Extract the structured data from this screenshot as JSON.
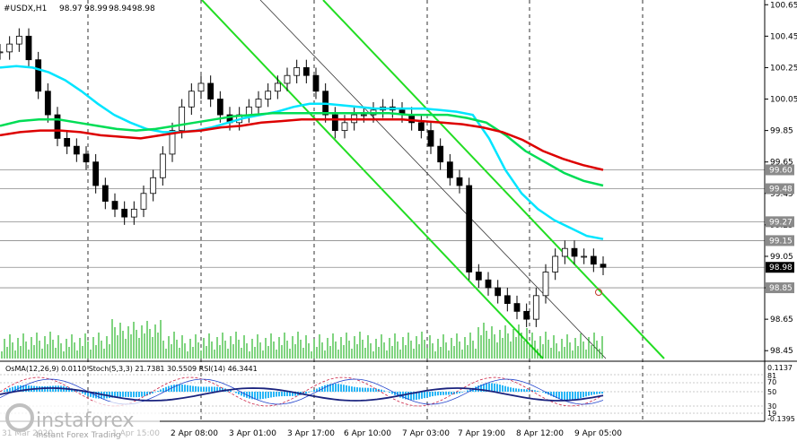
{
  "chart_data": {
    "type": "candlestick",
    "symbol_header": "#USDX,H1",
    "ohlc": [
      "98.97",
      "98.99",
      "98.94",
      "98.98"
    ],
    "price_axis": {
      "ylim": [
        98.4,
        100.68
      ],
      "ticks": [
        "100.65",
        "100.45",
        "100.25",
        "100.05",
        "99.85",
        "99.65",
        "99.45",
        "99.25",
        "99.05",
        "98.85",
        "98.65",
        "98.45"
      ],
      "tagged_levels": [
        "99.60",
        "99.48",
        "99.27",
        "99.15",
        "98.98",
        "98.85"
      ]
    },
    "time_axis": {
      "labels": [
        "31 Mar 2020",
        "1 Apr 15:00",
        "2 Apr 08:00",
        "3 Apr 01:00",
        "3 Apr 17:00",
        "6 Apr 10:00",
        "7 Apr 03:00",
        "7 Apr 19:00",
        "8 Apr 12:00",
        "9 Apr 05:00"
      ]
    },
    "horizontal_levels": [
      99.6,
      99.48,
      99.27,
      99.15,
      98.98,
      98.85
    ],
    "close_series": [
      100.35,
      100.4,
      100.45,
      100.3,
      100.1,
      99.95,
      99.8,
      99.75,
      99.7,
      99.65,
      99.5,
      99.4,
      99.35,
      99.3,
      99.35,
      99.45,
      99.55,
      99.7,
      99.85,
      100.0,
      100.1,
      100.15,
      100.05,
      99.95,
      99.9,
      99.95,
      100.0,
      100.05,
      100.1,
      100.15,
      100.2,
      100.25,
      100.2,
      100.1,
      99.95,
      99.85,
      99.9,
      99.95,
      99.95,
      99.98,
      100.0,
      99.98,
      99.95,
      99.9,
      99.85,
      99.75,
      99.65,
      99.55,
      99.5,
      98.95,
      98.9,
      98.85,
      98.8,
      98.75,
      98.7,
      98.65,
      98.8,
      98.95,
      99.05,
      99.1,
      99.05,
      99.05,
      99.0,
      98.98
    ],
    "moving_averages": [
      {
        "color": "#00e5ff",
        "values": [
          100.25,
          100.26,
          100.25,
          100.22,
          100.17,
          100.1,
          100.02,
          99.95,
          99.9,
          99.86,
          99.84,
          99.84,
          99.85,
          99.87,
          99.9,
          99.93,
          99.95,
          99.97,
          100.0,
          100.02,
          100.02,
          100.01,
          100.0,
          99.99,
          99.99,
          99.99,
          99.99,
          99.98,
          99.97,
          99.95,
          99.8,
          99.6,
          99.45,
          99.35,
          99.28,
          99.23,
          99.18,
          99.16
        ]
      },
      {
        "color": "#00dd55",
        "values": [
          99.88,
          99.91,
          99.92,
          99.92,
          99.9,
          99.88,
          99.86,
          99.85,
          99.86,
          99.88,
          99.9,
          99.92,
          99.94,
          99.95,
          99.96,
          99.96,
          99.96,
          99.96,
          99.96,
          99.96,
          99.96,
          99.95,
          99.95,
          99.95,
          99.93,
          99.9,
          99.82,
          99.72,
          99.65,
          99.58,
          99.53,
          99.5
        ]
      },
      {
        "color": "#dd0000",
        "values": [
          99.82,
          99.84,
          99.85,
          99.85,
          99.84,
          99.82,
          99.81,
          99.8,
          99.82,
          99.84,
          99.85,
          99.87,
          99.88,
          99.9,
          99.91,
          99.92,
          99.92,
          99.92,
          99.92,
          99.92,
          99.92,
          99.91,
          99.9,
          99.89,
          99.87,
          99.84,
          99.79,
          99.72,
          99.67,
          99.63,
          99.6
        ]
      }
    ],
    "indicator_panel": {
      "header": "OsMA(12,26,9) 0.0110  Stoch(5,3,3) 21.7381 30.5509  RSI(14) 46.3441",
      "right_labels": [
        "0.1137",
        "81",
        "70",
        "50",
        "30",
        "19",
        "-0.1395"
      ]
    },
    "watermark": {
      "brand": "instaforex",
      "tagline": "Instant Forex Trading"
    }
  }
}
